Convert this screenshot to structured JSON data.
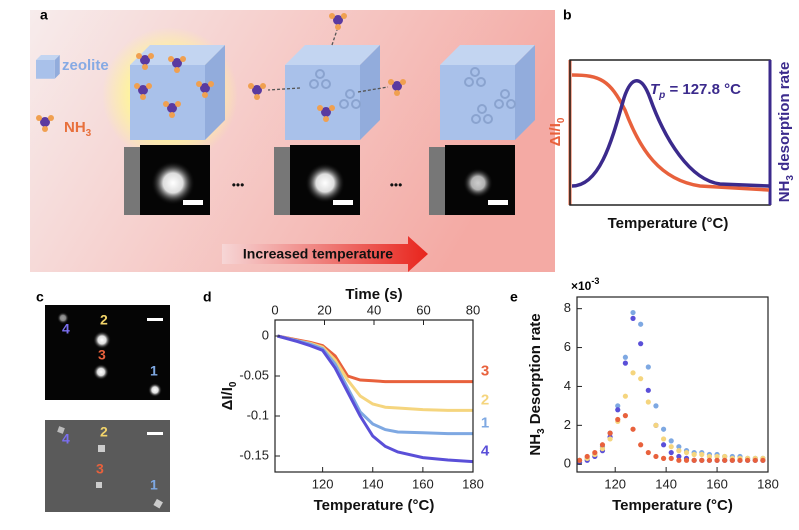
{
  "panel_labels": [
    "a",
    "b",
    "c",
    "d",
    "e"
  ],
  "panel_a": {
    "legend_zeolite": "zeolite",
    "legend_nh": "NH",
    "legend_nh_sub": "3",
    "ellipsis": [
      "•••",
      "•••"
    ],
    "arrow_label": "Increased temperature"
  },
  "panel_b": {
    "tp_symbol": "T",
    "tp_sub": "p",
    "tp_value": " = 127.8 °C",
    "left_label": "ΔI/I",
    "left_label_sub": "0",
    "right_label": "NH",
    "right_label_sub": "3",
    "right_label_rest": " desorption rate",
    "x_label": "Temperature (°C)"
  },
  "panel_c": {
    "top_labels": [
      "4",
      "2",
      "3",
      "1"
    ],
    "bottom_labels": [
      "4",
      "2",
      "3",
      "1"
    ]
  },
  "chart_data": [
    {
      "type": "line",
      "x_label": "Temperature (°C)",
      "x2_label": "Time (s)",
      "y_label": "ΔI/I",
      "y_label_sub": "0",
      "x": [
        102,
        110,
        115,
        120,
        125,
        130,
        135,
        140,
        145,
        150,
        160,
        170,
        180
      ],
      "xlim": [
        101,
        180
      ],
      "xticks": [
        120,
        140,
        160,
        180
      ],
      "x2lim": [
        0,
        80
      ],
      "x2ticks": [
        0,
        20,
        40,
        60,
        80
      ],
      "ylim": [
        -0.17,
        0.02
      ],
      "yticks": [
        0,
        -0.05,
        -0.1,
        -0.15
      ],
      "series": [
        {
          "name": "3",
          "color": "#e8613c",
          "values": [
            0,
            -0.005,
            -0.008,
            -0.012,
            -0.025,
            -0.05,
            -0.055,
            -0.056,
            -0.057,
            -0.057,
            -0.057,
            -0.057,
            -0.057
          ]
        },
        {
          "name": "2",
          "color": "#f5d57e",
          "values": [
            0,
            -0.006,
            -0.009,
            -0.014,
            -0.03,
            -0.055,
            -0.075,
            -0.085,
            -0.089,
            -0.09,
            -0.092,
            -0.093,
            -0.093
          ]
        },
        {
          "name": "1",
          "color": "#7ea8e2",
          "values": [
            0,
            -0.006,
            -0.01,
            -0.016,
            -0.035,
            -0.065,
            -0.095,
            -0.11,
            -0.117,
            -0.12,
            -0.121,
            -0.122,
            -0.122
          ]
        },
        {
          "name": "4",
          "color": "#5a4fd8",
          "values": [
            0,
            -0.007,
            -0.012,
            -0.018,
            -0.04,
            -0.07,
            -0.1,
            -0.125,
            -0.138,
            -0.145,
            -0.152,
            -0.155,
            -0.157
          ]
        }
      ]
    },
    {
      "type": "scatter",
      "x_label": "Temperature (°C)",
      "y_label": "NH",
      "y_label_sub": "3",
      "y_label_rest": " Desorption rate",
      "multiplier": "×10",
      "multiplier_exp": "-3",
      "x": [
        106,
        109,
        112,
        115,
        118,
        121,
        124,
        127,
        130,
        133,
        136,
        139,
        142,
        145,
        148,
        151,
        154,
        157,
        160,
        163,
        166,
        169,
        172,
        175,
        178
      ],
      "xlim": [
        105,
        180
      ],
      "xticks": [
        120,
        140,
        160,
        180
      ],
      "ylim": [
        -0.4,
        8.6
      ],
      "yticks": [
        0,
        2,
        4,
        6,
        8
      ],
      "series": [
        {
          "color": "#7ea8e2",
          "values": [
            0.2,
            0.3,
            0.5,
            0.9,
            1.6,
            3.0,
            5.5,
            7.8,
            7.2,
            5.0,
            3.0,
            1.8,
            1.2,
            0.9,
            0.7,
            0.6,
            0.6,
            0.5,
            0.5,
            0.4,
            0.4,
            0.4,
            0.3,
            0.3,
            0.3
          ]
        },
        {
          "color": "#5a4fd8",
          "values": [
            0.1,
            0.2,
            0.4,
            0.7,
            1.4,
            2.8,
            5.2,
            7.5,
            6.2,
            3.8,
            2.0,
            1.0,
            0.6,
            0.4,
            0.3,
            0.2,
            0.2,
            0.2,
            0.2,
            0.2,
            0.2,
            0.2,
            0.2,
            0.2,
            0.2
          ]
        },
        {
          "color": "#f5d57e",
          "values": [
            0.2,
            0.3,
            0.5,
            0.8,
            1.3,
            2.2,
            3.5,
            4.7,
            4.4,
            3.2,
            2.0,
            1.3,
            0.9,
            0.7,
            0.6,
            0.5,
            0.5,
            0.4,
            0.4,
            0.4,
            0.3,
            0.3,
            0.3,
            0.3,
            0.3
          ]
        },
        {
          "color": "#e8613c",
          "values": [
            0.2,
            0.4,
            0.6,
            1.0,
            1.6,
            2.3,
            2.5,
            1.8,
            1.0,
            0.6,
            0.4,
            0.3,
            0.3,
            0.2,
            0.2,
            0.2,
            0.2,
            0.2,
            0.2,
            0.2,
            0.2,
            0.2,
            0.2,
            0.2,
            0.2
          ]
        }
      ]
    }
  ]
}
